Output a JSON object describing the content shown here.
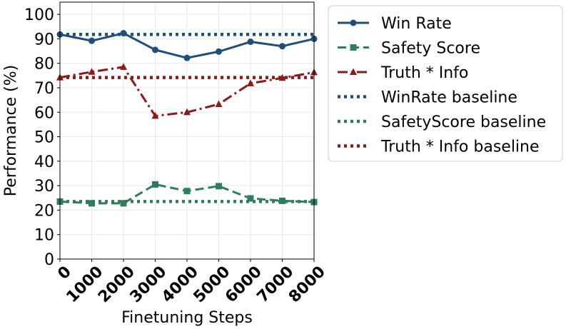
{
  "chart_data": {
    "type": "line",
    "title": "",
    "xlabel": "Finetuning Steps",
    "ylabel": "Performance (%)",
    "x": [
      0,
      1000,
      2000,
      3000,
      4000,
      5000,
      6000,
      7000,
      8000
    ],
    "x_tick_labels": [
      "0",
      "1000",
      "2000",
      "3000",
      "4000",
      "5000",
      "6000",
      "7000",
      "8000"
    ],
    "y_ticks": [
      0,
      10,
      20,
      30,
      40,
      50,
      60,
      70,
      80,
      90,
      100
    ],
    "xlim": [
      0,
      8000
    ],
    "ylim": [
      0,
      105
    ],
    "grid": true,
    "legend_position": "outside-right",
    "series": [
      {
        "name": "Win Rate",
        "values": [
          91.8,
          89.2,
          92.3,
          85.5,
          82.2,
          84.8,
          88.8,
          87.0,
          90.0
        ],
        "color": "#1f4e79",
        "style": "solid",
        "marker": "circle"
      },
      {
        "name": "Safety Score",
        "values": [
          23.5,
          22.8,
          22.8,
          30.5,
          27.8,
          29.8,
          24.8,
          23.8,
          23.3
        ],
        "color": "#2e7d5b",
        "style": "dashed",
        "marker": "square"
      },
      {
        "name": "Truth * Info",
        "values": [
          74.2,
          76.5,
          78.5,
          58.5,
          60.0,
          63.3,
          71.8,
          74.0,
          76.3
        ],
        "color": "#8b1a1a",
        "style": "dashdot",
        "marker": "triangle"
      }
    ],
    "baselines": [
      {
        "name": "WinRate baseline",
        "value": 91.8,
        "color": "#1f4e79",
        "style": "dotted"
      },
      {
        "name": "SafetyScore baseline",
        "value": 23.5,
        "color": "#2e7d5b",
        "style": "dotted"
      },
      {
        "name": "Truth * Info baseline",
        "value": 74.2,
        "color": "#8b1a1a",
        "style": "dotted"
      }
    ]
  }
}
